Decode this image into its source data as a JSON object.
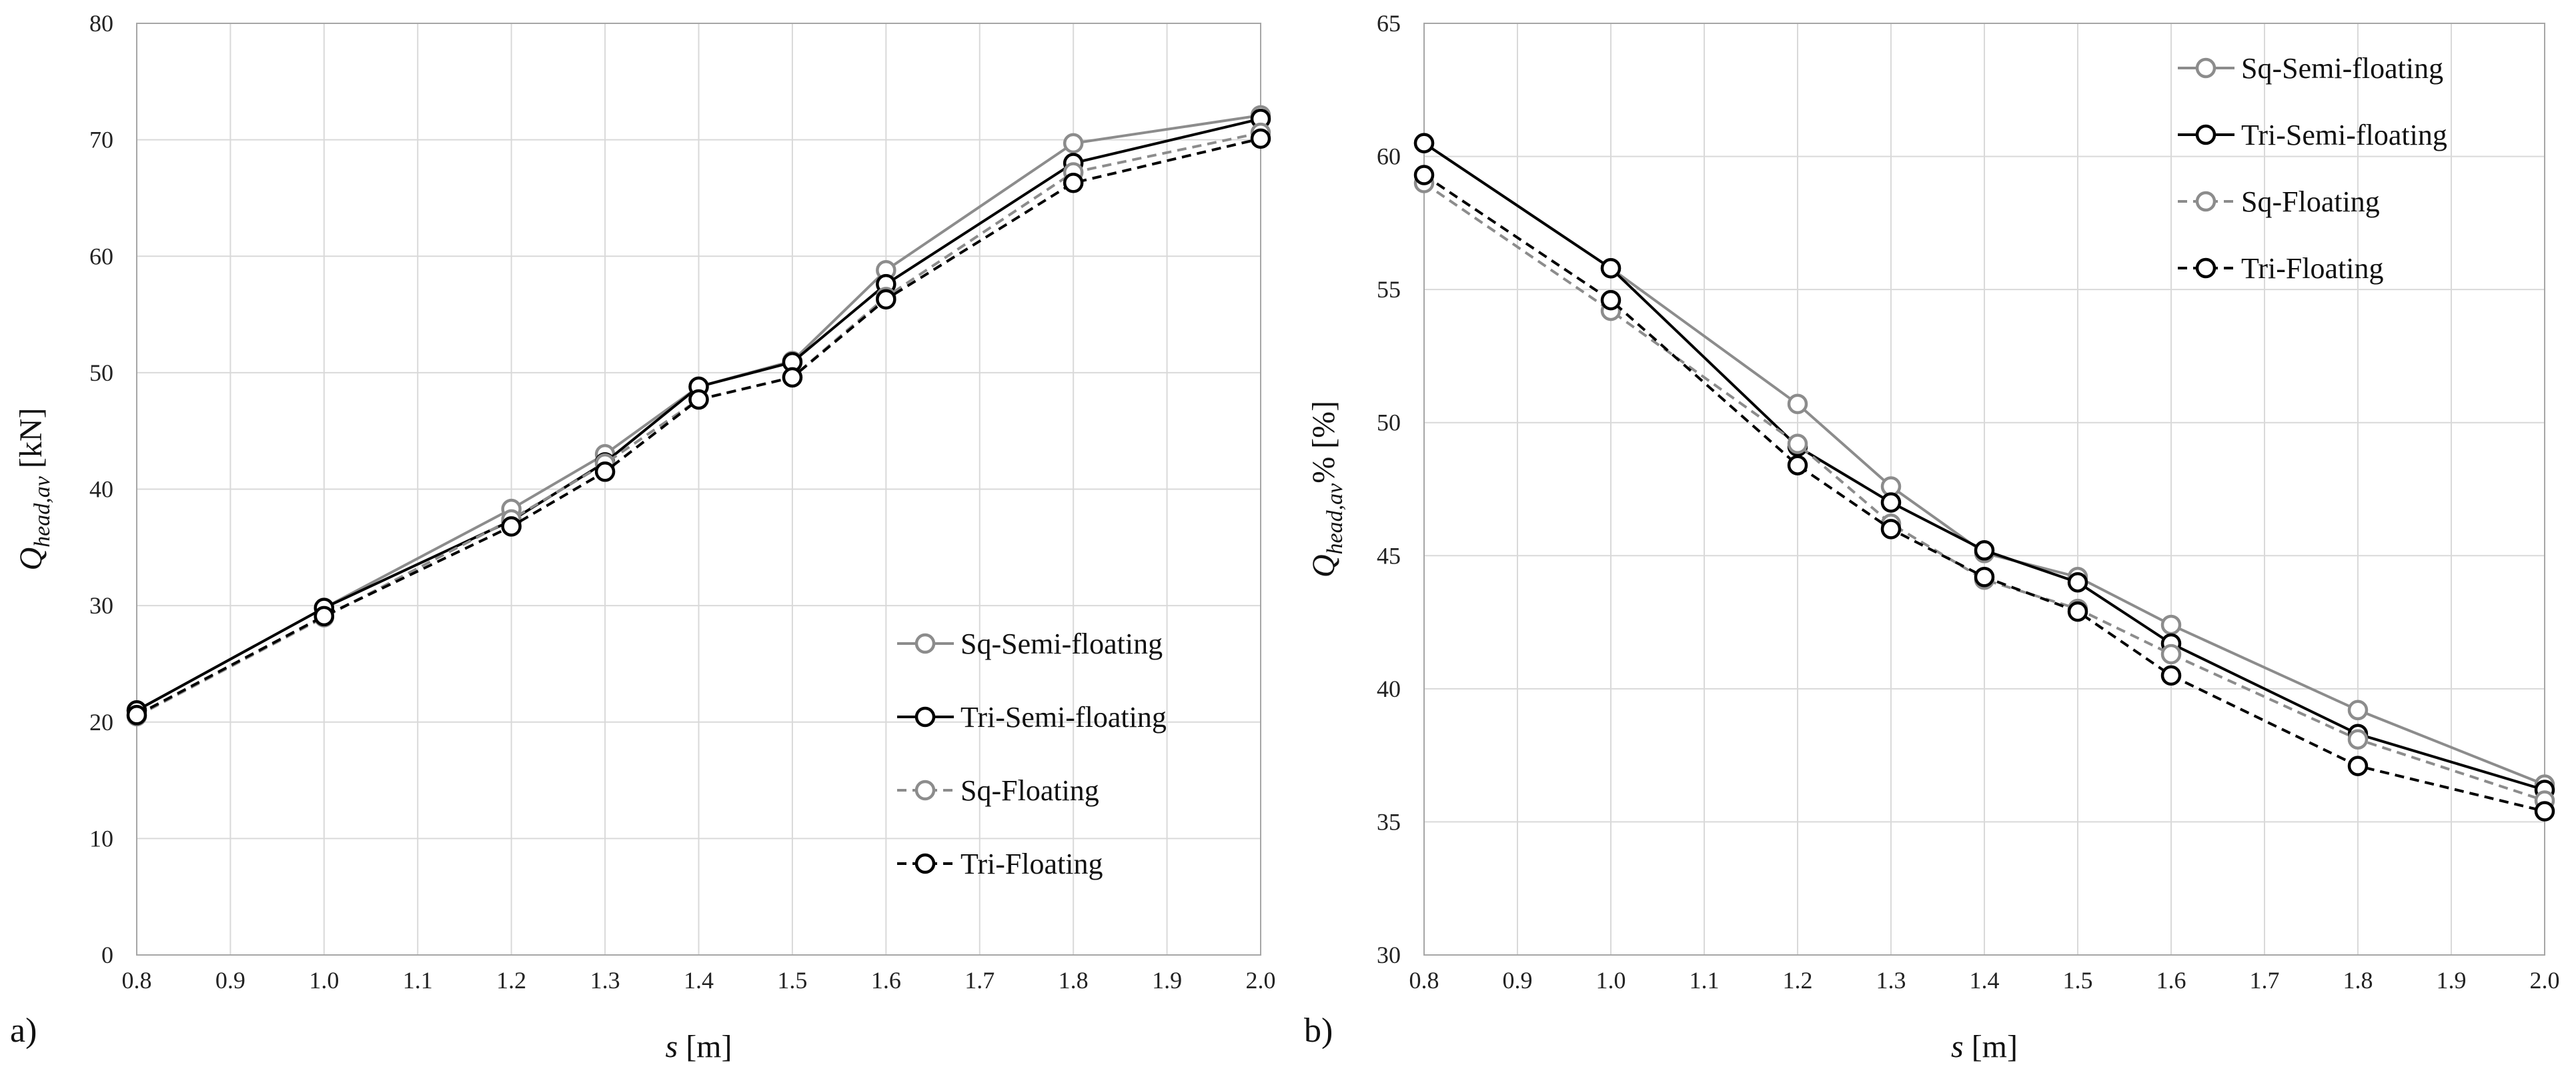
{
  "chart_data": [
    {
      "type": "line",
      "panel_label": "a)",
      "xlabel": "s",
      "xlabel_unit": "[m]",
      "ylabel": "Q",
      "ylabel_sub": "head,av",
      "ylabel_suffix": " [kN]",
      "xlim": [
        0.8,
        2.0
      ],
      "ylim": [
        0,
        80
      ],
      "xticks": [
        "0.8",
        "0.9",
        "1.0",
        "1.1",
        "1.2",
        "1.3",
        "1.4",
        "1.5",
        "1.6",
        "1.7",
        "1.8",
        "1.9",
        "2.0"
      ],
      "yticks": [
        "0",
        "10",
        "20",
        "30",
        "40",
        "50",
        "60",
        "70",
        "80"
      ],
      "legend_position": "bottom-right",
      "grid": true,
      "x": [
        0.8,
        1.0,
        1.2,
        1.3,
        1.4,
        1.5,
        1.6,
        1.8,
        2.0
      ],
      "series": [
        {
          "name": "Sq-Semi-floating",
          "color": "#8c8c8c",
          "dash": "solid",
          "values": [
            21.0,
            29.8,
            38.3,
            43.0,
            48.8,
            51.0,
            58.8,
            69.7,
            72.1
          ]
        },
        {
          "name": "Tri-Semi-floating",
          "color": "#000000",
          "dash": "solid",
          "values": [
            21.0,
            29.8,
            37.3,
            42.3,
            48.8,
            50.9,
            57.6,
            68.0,
            71.8
          ]
        },
        {
          "name": "Sq-Floating",
          "color": "#8c8c8c",
          "dash": "dashed",
          "values": [
            20.5,
            29.0,
            37.4,
            42.2,
            47.7,
            49.6,
            56.5,
            67.2,
            70.6
          ]
        },
        {
          "name": "Tri-Floating",
          "color": "#000000",
          "dash": "dashed",
          "values": [
            20.6,
            29.1,
            36.8,
            41.5,
            47.7,
            49.6,
            56.3,
            66.3,
            70.1
          ]
        }
      ]
    },
    {
      "type": "line",
      "panel_label": "b)",
      "xlabel": "s",
      "xlabel_unit": "[m]",
      "ylabel": "Q",
      "ylabel_sub": "head,av",
      "ylabel_suffix": "% [%]",
      "xlim": [
        0.8,
        2.0
      ],
      "ylim": [
        30,
        65
      ],
      "xticks": [
        "0.8",
        "0.9",
        "1.0",
        "1.1",
        "1.2",
        "1.3",
        "1.4",
        "1.5",
        "1.6",
        "1.7",
        "1.8",
        "1.9",
        "2.0"
      ],
      "yticks": [
        "30",
        "35",
        "40",
        "45",
        "50",
        "55",
        "60",
        "65"
      ],
      "legend_position": "top-right",
      "grid": true,
      "x": [
        0.8,
        1.0,
        1.2,
        1.3,
        1.4,
        1.5,
        1.6,
        1.8,
        2.0
      ],
      "series": [
        {
          "name": "Sq-Semi-floating",
          "color": "#8c8c8c",
          "dash": "solid",
          "values": [
            60.5,
            55.8,
            50.7,
            47.6,
            45.1,
            44.2,
            42.4,
            39.2,
            36.4
          ]
        },
        {
          "name": "Tri-Semi-floating",
          "color": "#000000",
          "dash": "solid",
          "values": [
            60.5,
            55.8,
            49.1,
            47.0,
            45.2,
            44.0,
            41.7,
            38.3,
            36.2
          ]
        },
        {
          "name": "Sq-Floating",
          "color": "#8c8c8c",
          "dash": "dashed",
          "values": [
            59.0,
            54.2,
            49.2,
            46.2,
            44.1,
            43.0,
            41.3,
            38.1,
            35.8
          ]
        },
        {
          "name": "Tri-Floating",
          "color": "#000000",
          "dash": "dashed",
          "values": [
            59.3,
            54.6,
            48.4,
            46.0,
            44.2,
            42.9,
            40.5,
            37.1,
            35.4
          ]
        }
      ]
    }
  ]
}
